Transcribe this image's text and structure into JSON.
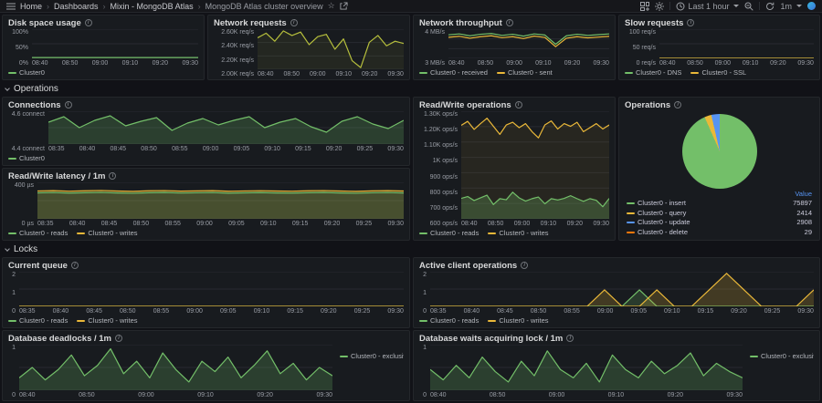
{
  "nav": {
    "separator": "›",
    "breadcrumbs": [
      "Home",
      "Dashboards",
      "Mixin - MongoDB Atlas",
      "MongoDB Atlas cluster overview"
    ],
    "time_range": "Last 1 hour",
    "refresh_interval": "1m",
    "icons": [
      "hamburger",
      "star",
      "share",
      "add-panel",
      "gear",
      "clock",
      "zoom-out",
      "refresh",
      "caret-down",
      "avatar"
    ]
  },
  "rows": {
    "operations": {
      "label": "Operations"
    },
    "locks": {
      "label": "Locks"
    }
  },
  "colors": {
    "green": "#73bf69",
    "yellow": "#eab839",
    "blue": "#5794f2",
    "orange": "#ff780a",
    "olive": "#b6bf3c"
  },
  "panels": {
    "disk": {
      "title": "Disk space usage",
      "y_ticks": [
        "100%",
        "50%",
        "0%"
      ],
      "x_ticks": [
        "08:40",
        "08:50",
        "09:00",
        "09:10",
        "09:20",
        "09:30"
      ],
      "legend": [
        {
          "label": "Cluster0",
          "color": "#73bf69"
        }
      ]
    },
    "network_requests": {
      "title": "Network requests",
      "y_ticks": [
        "2.60K req/s",
        "2.40K req/s",
        "2.20K req/s",
        "2.00K req/s"
      ],
      "x_ticks": [
        "08:40",
        "08:50",
        "09:00",
        "09:10",
        "09:20",
        "09:30"
      ],
      "legend": []
    },
    "network_throughput": {
      "title": "Network throughput",
      "y_ticks": [
        "4 MB/s",
        "3 MB/s"
      ],
      "x_ticks": [
        "08:40",
        "08:50",
        "09:00",
        "09:10",
        "09:20",
        "09:30"
      ],
      "legend": [
        {
          "label": "Cluster0 - received",
          "color": "#73bf69"
        },
        {
          "label": "Cluster0 - sent",
          "color": "#eab839"
        }
      ]
    },
    "slow_requests": {
      "title": "Slow requests",
      "y_ticks": [
        "100 req/s",
        "50 req/s",
        "0 req/s"
      ],
      "x_ticks": [
        "08:40",
        "08:50",
        "09:00",
        "09:10",
        "09:20",
        "09:30"
      ],
      "legend": [
        {
          "label": "Cluster0 - DNS",
          "color": "#73bf69"
        },
        {
          "label": "Cluster0 - SSL",
          "color": "#eab839"
        }
      ]
    },
    "connections": {
      "title": "Connections",
      "y_ticks": [
        "4.6 connect",
        "4.4 connect"
      ],
      "x_ticks": [
        "08:35",
        "08:40",
        "08:45",
        "08:50",
        "08:55",
        "09:00",
        "09:05",
        "09:10",
        "09:15",
        "09:20",
        "09:25",
        "09:30"
      ],
      "legend": [
        {
          "label": "Cluster0",
          "color": "#73bf69"
        }
      ]
    },
    "latency": {
      "title": "Read/Write latency / 1m",
      "y_ticks": [
        "400 µs",
        "0 µs"
      ],
      "x_ticks": [
        "08:35",
        "08:40",
        "08:45",
        "08:50",
        "08:55",
        "09:00",
        "09:05",
        "09:10",
        "09:15",
        "09:20",
        "09:25",
        "09:30"
      ],
      "legend": [
        {
          "label": "Cluster0 - reads",
          "color": "#73bf69"
        },
        {
          "label": "Cluster0 - writes",
          "color": "#eab839"
        }
      ]
    },
    "rw_ops": {
      "title": "Read/Write operations",
      "y_ticks": [
        "1.30K ops/s",
        "1.20K ops/s",
        "1.10K ops/s",
        "1K ops/s",
        "900 ops/s",
        "800 ops/s",
        "700 ops/s",
        "600 ops/s"
      ],
      "x_ticks": [
        "08:40",
        "08:50",
        "09:00",
        "09:10",
        "09:20",
        "09:30"
      ],
      "legend": [
        {
          "label": "Cluster0 - reads",
          "color": "#73bf69"
        },
        {
          "label": "Cluster0 - writes",
          "color": "#eab839"
        }
      ]
    },
    "operations_pie": {
      "title": "Operations",
      "value_header": "Value",
      "rows": [
        {
          "label": "Cluster0 - insert",
          "color": "#73bf69",
          "value": "75897"
        },
        {
          "label": "Cluster0 - query",
          "color": "#eab839",
          "value": "2414"
        },
        {
          "label": "Cluster0 - update",
          "color": "#5794f2",
          "value": "2908"
        },
        {
          "label": "Cluster0 - delete",
          "color": "#ff780a",
          "value": "29"
        }
      ]
    },
    "current_queue": {
      "title": "Current queue",
      "y_ticks": [
        "2",
        "1",
        "0"
      ],
      "x_ticks": [
        "08:35",
        "08:40",
        "08:45",
        "08:50",
        "08:55",
        "09:00",
        "09:05",
        "09:10",
        "09:15",
        "09:20",
        "09:25",
        "09:30"
      ],
      "legend": [
        {
          "label": "Cluster0 - reads",
          "color": "#73bf69"
        },
        {
          "label": "Cluster0 - writes",
          "color": "#eab839"
        }
      ]
    },
    "active_client": {
      "title": "Active client operations",
      "y_ticks": [
        "2",
        "1",
        "0"
      ],
      "x_ticks": [
        "08:35",
        "08:40",
        "08:45",
        "08:50",
        "08:55",
        "09:00",
        "09:05",
        "09:10",
        "09:15",
        "09:20",
        "09:25",
        "09:30"
      ],
      "legend": [
        {
          "label": "Cluster0 - reads",
          "color": "#73bf69"
        },
        {
          "label": "Cluster0 - writes",
          "color": "#eab839"
        }
      ]
    },
    "deadlocks": {
      "title": "Database deadlocks / 1m",
      "y_ticks": [
        "1",
        "0"
      ],
      "x_ticks": [
        "08:40",
        "08:50",
        "09:00",
        "09:10",
        "09:20",
        "09:30"
      ],
      "legend": [
        {
          "label": "Cluster0 - exclusive",
          "color": "#73bf69"
        }
      ]
    },
    "lock_waits": {
      "title": "Database waits acquiring lock / 1m",
      "y_ticks": [
        "1",
        "0"
      ],
      "x_ticks": [
        "08:40",
        "08:50",
        "09:00",
        "09:10",
        "09:20",
        "09:30"
      ],
      "legend": [
        {
          "label": "Cluster0 - exclusive",
          "color": "#73bf69"
        }
      ]
    }
  },
  "chart_data": {
    "disk": {
      "type": "area",
      "yMin": 0,
      "yMax": 100,
      "grid": 2,
      "series": [
        {
          "name": "Cluster0",
          "color": "#73bf69",
          "fill": 0.3,
          "values": [
            3,
            3,
            3,
            3,
            3,
            3,
            3,
            3,
            3,
            3,
            3,
            3
          ]
        }
      ]
    },
    "network_requests": {
      "type": "line",
      "yMin": 1950,
      "yMax": 2650,
      "grid": 3,
      "series": [
        {
          "name": "Cluster0",
          "color": "#b6bf3c",
          "fill": 0.08,
          "values": [
            2500,
            2580,
            2440,
            2620,
            2540,
            2600,
            2380,
            2520,
            2560,
            2300,
            2480,
            2100,
            1980,
            2420,
            2540,
            2360,
            2440,
            2400
          ]
        }
      ]
    },
    "network_throughput": {
      "type": "line",
      "yMin": 2.8,
      "yMax": 4.35,
      "grid": 3,
      "series": [
        {
          "name": "Cluster0 - received",
          "color": "#73bf69",
          "fill": 0,
          "values": [
            4.05,
            4.1,
            4.0,
            4.08,
            4.12,
            4.02,
            4.08,
            3.98,
            4.1,
            4.04,
            3.55,
            4.0,
            4.08,
            4.02,
            4.06,
            4.1
          ]
        },
        {
          "name": "Cluster0 - sent",
          "color": "#eab839",
          "fill": 0,
          "values": [
            3.92,
            3.97,
            3.87,
            3.95,
            4.0,
            3.9,
            3.95,
            3.85,
            3.98,
            3.91,
            3.42,
            3.87,
            3.95,
            3.89,
            3.93,
            3.97
          ]
        }
      ]
    },
    "slow_requests": {
      "type": "line",
      "yMin": 0,
      "yMax": 100,
      "grid": 2,
      "series": [
        {
          "name": "Cluster0 - DNS",
          "color": "#73bf69",
          "fill": 0,
          "values": [
            0,
            0,
            0,
            0,
            0,
            0,
            0,
            0,
            0,
            0,
            0,
            0
          ]
        },
        {
          "name": "Cluster0 - SSL",
          "color": "#eab839",
          "fill": 0,
          "values": [
            0,
            0,
            0,
            0,
            0,
            0,
            0,
            0,
            0,
            0,
            0,
            0
          ]
        }
      ]
    },
    "connections": {
      "type": "area",
      "yMin": 4.32,
      "yMax": 4.68,
      "grid": 2,
      "series": [
        {
          "name": "Cluster0",
          "color": "#73bf69",
          "fill": 0.22,
          "values": [
            4.56,
            4.62,
            4.5,
            4.58,
            4.63,
            4.52,
            4.57,
            4.61,
            4.47,
            4.55,
            4.6,
            4.53,
            4.58,
            4.62,
            4.5,
            4.56,
            4.6,
            4.51,
            4.45,
            4.57,
            4.62,
            4.54,
            4.49,
            4.58
          ]
        }
      ]
    },
    "latency": {
      "type": "area",
      "yMin": 0,
      "yMax": 500,
      "grid": 2,
      "series": [
        {
          "name": "Cluster0 - writes",
          "color": "#eab839",
          "fill": 0.18,
          "values": [
            382,
            386,
            379,
            384,
            388,
            381,
            377,
            384,
            387,
            380,
            383,
            386,
            378,
            382,
            385,
            381,
            379,
            384,
            387,
            381,
            377,
            383,
            386,
            381
          ]
        },
        {
          "name": "Cluster0 - reads",
          "color": "#73bf69",
          "fill": 0.18,
          "values": [
            356,
            360,
            353,
            358,
            362,
            355,
            351,
            358,
            361,
            354,
            357,
            360,
            352,
            356,
            359,
            355,
            353,
            358,
            361,
            355,
            351,
            357,
            360,
            355
          ]
        }
      ]
    },
    "rw_ops": {
      "type": "area",
      "yMin": 550,
      "yMax": 1350,
      "grid": 7,
      "series": [
        {
          "name": "Cluster0 - writes",
          "color": "#eab839",
          "fill": 0.07,
          "values": [
            1245,
            1275,
            1215,
            1258,
            1298,
            1238,
            1178,
            1248,
            1268,
            1228,
            1258,
            1198,
            1152,
            1248,
            1278,
            1218,
            1258,
            1238,
            1268,
            1198,
            1228,
            1258,
            1218,
            1248
          ]
        },
        {
          "name": "Cluster0 - reads",
          "color": "#73bf69",
          "fill": 0.25,
          "values": [
            702,
            716,
            686,
            706,
            726,
            656,
            700,
            692,
            748,
            706,
            682,
            700,
            712,
            662,
            700,
            690,
            702,
            722,
            700,
            680,
            700,
            688,
            640,
            702
          ]
        }
      ]
    },
    "operations_pie": {
      "type": "pie",
      "labels": [
        "Cluster0 - insert",
        "Cluster0 - query",
        "Cluster0 - update",
        "Cluster0 - delete"
      ],
      "values": [
        75897,
        2414,
        2908,
        29
      ],
      "colors": [
        "#73bf69",
        "#eab839",
        "#5794f2",
        "#ff780a"
      ]
    },
    "current_queue": {
      "type": "line",
      "yMin": 0,
      "yMax": 2.1,
      "grid": 2,
      "series": [
        {
          "name": "Cluster0 - reads",
          "color": "#73bf69",
          "fill": 0,
          "values": [
            0,
            0,
            0,
            0,
            0,
            0,
            0,
            0,
            0,
            0,
            0,
            0
          ]
        },
        {
          "name": "Cluster0 - writes",
          "color": "#eab839",
          "fill": 0,
          "values": [
            0,
            0,
            0,
            0,
            0,
            0,
            0,
            0,
            0,
            0,
            0,
            0
          ]
        }
      ]
    },
    "active_client": {
      "type": "area",
      "yMin": 0,
      "yMax": 2.1,
      "grid": 2,
      "series": [
        {
          "name": "Cluster0 - reads",
          "color": "#73bf69",
          "fill": 0.2,
          "values": [
            0,
            0,
            0,
            0,
            0,
            0,
            0,
            0,
            0,
            0,
            0,
            0,
            1,
            0,
            0,
            0,
            0,
            0,
            0,
            0,
            0,
            0,
            0
          ]
        },
        {
          "name": "Cluster0 - writes",
          "color": "#eab839",
          "fill": 0.2,
          "values": [
            0,
            0,
            0,
            0,
            0,
            0,
            0,
            0,
            0,
            0,
            1,
            0,
            0,
            1,
            0,
            0,
            1,
            2,
            1,
            0,
            0,
            0,
            1
          ]
        }
      ]
    },
    "deadlocks": {
      "type": "area",
      "yMin": 0,
      "yMax": 1.1,
      "grid": 2,
      "series": [
        {
          "name": "Cluster0 - exclusive",
          "color": "#73bf69",
          "fill": 0.22,
          "values": [
            0.3,
            0.55,
            0.25,
            0.5,
            0.85,
            0.35,
            0.6,
            1.0,
            0.4,
            0.7,
            0.3,
            0.9,
            0.5,
            0.2,
            0.7,
            0.45,
            0.8,
            0.3,
            0.6,
            0.95,
            0.4,
            0.65,
            0.25,
            0.55,
            0.35
          ]
        }
      ]
    },
    "lock_waits": {
      "type": "area",
      "yMin": 0,
      "yMax": 1.1,
      "grid": 2,
      "series": [
        {
          "name": "Cluster0 - exclusive",
          "color": "#73bf69",
          "fill": 0.22,
          "values": [
            0.5,
            0.25,
            0.6,
            0.3,
            0.8,
            0.45,
            0.2,
            0.7,
            0.35,
            0.95,
            0.5,
            0.3,
            0.65,
            0.2,
            0.85,
            0.5,
            0.3,
            0.7,
            0.4,
            0.6,
            0.9,
            0.35,
            0.65,
            0.45,
            0.3
          ]
        }
      ]
    }
  }
}
